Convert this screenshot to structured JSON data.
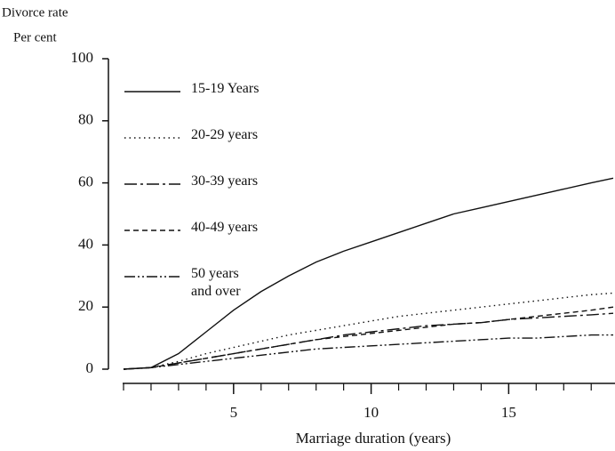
{
  "chart_data": {
    "type": "line",
    "y_label": "Divorce rate",
    "y_unit": "Per cent",
    "x_label": "Marriage duration (years)",
    "x": [
      1,
      2,
      3,
      4,
      5,
      6,
      7,
      8,
      9,
      10,
      11,
      12,
      13,
      14,
      15,
      16,
      17,
      18,
      18.8
    ],
    "series": [
      {
        "name": "15-19 Years",
        "color": "#111111",
        "style": "solid",
        "values": [
          0,
          0.5,
          5,
          12,
          19,
          25,
          30,
          34.5,
          38,
          41,
          44,
          47,
          50,
          52,
          54,
          56,
          58,
          60,
          61.5
        ]
      },
      {
        "name": "20-29 years",
        "color": "#111111",
        "style": "dotted",
        "values": [
          0,
          0.5,
          2.5,
          5,
          7,
          9,
          11,
          12.5,
          14,
          15.5,
          17,
          18,
          19,
          20,
          21,
          22,
          23,
          24,
          24.5
        ]
      },
      {
        "name": "30-39 years",
        "color": "#111111",
        "style": "dashdot",
        "values": [
          0,
          0.5,
          2,
          3.5,
          5,
          6.5,
          8,
          9.5,
          11,
          12,
          13,
          14,
          14.5,
          15,
          16,
          16.5,
          17,
          17.5,
          18
        ]
      },
      {
        "name": "40-49 years",
        "color": "#111111",
        "style": "dashed",
        "values": [
          0,
          0.5,
          2,
          3.5,
          5,
          6.5,
          8,
          9.5,
          10.5,
          11.5,
          12.5,
          13.5,
          14.5,
          15,
          16,
          17,
          18,
          19,
          20
        ]
      },
      {
        "name": "50 years and over",
        "color": "#111111",
        "style": "dashdotdot",
        "values": [
          0,
          0.5,
          1.5,
          2.5,
          3.5,
          4.5,
          5.5,
          6.5,
          7,
          7.5,
          8,
          8.5,
          9,
          9.5,
          10,
          10,
          10.5,
          11,
          11
        ]
      }
    ],
    "xlim": [
      1,
      18.8
    ],
    "xticks": [
      5,
      10,
      15
    ],
    "xminor_ticks": [
      1,
      2,
      3,
      4,
      6,
      7,
      8,
      9,
      11,
      12,
      13,
      14,
      16,
      17,
      18
    ],
    "ylim": [
      0,
      100
    ],
    "yticks": [
      0,
      20,
      40,
      60,
      80,
      100
    ]
  }
}
